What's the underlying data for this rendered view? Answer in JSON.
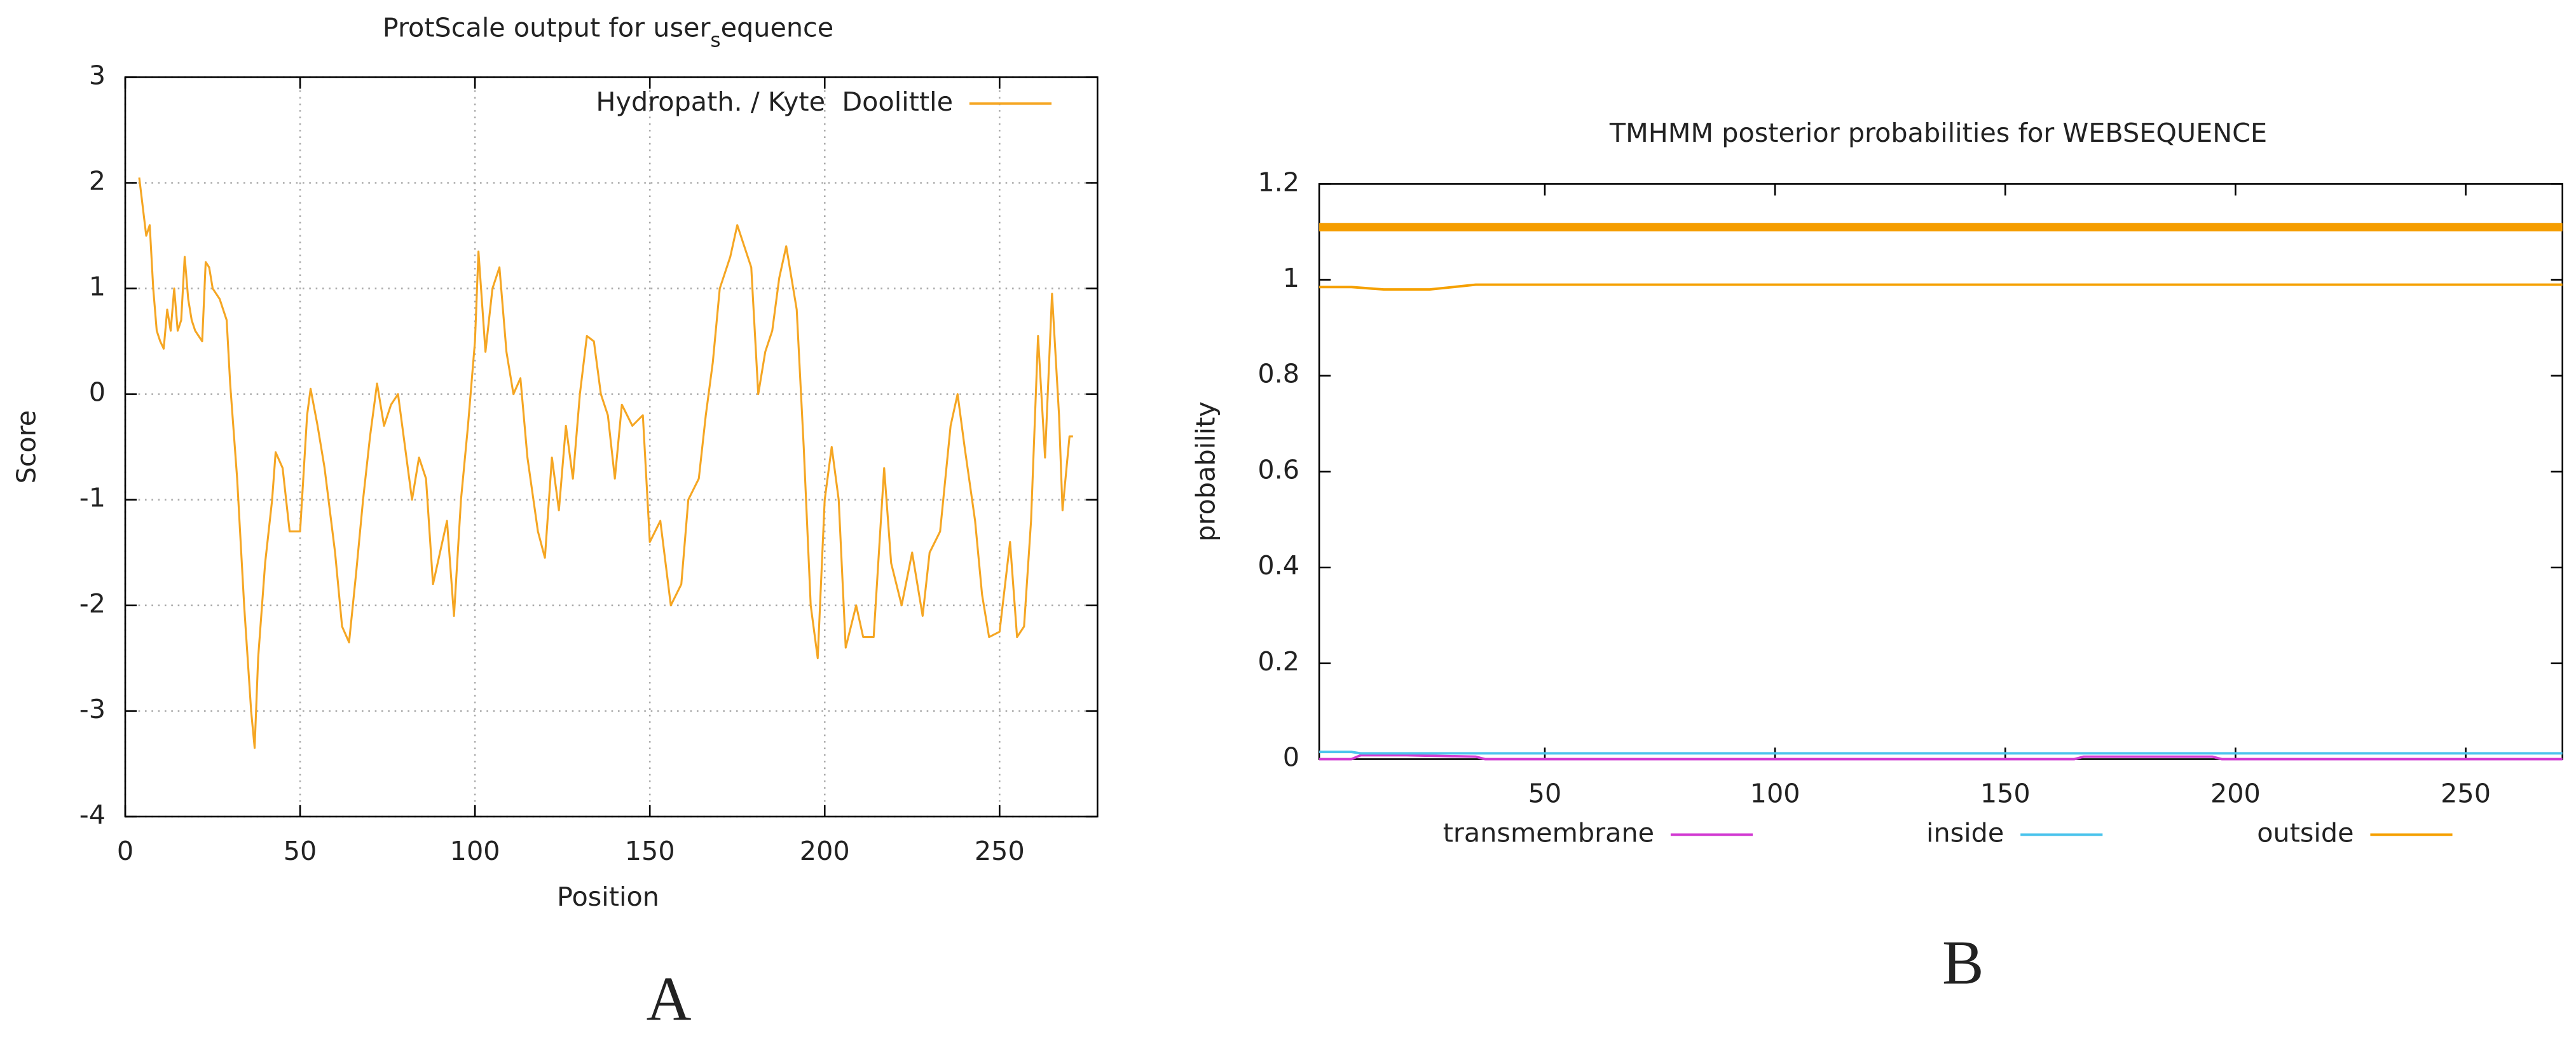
{
  "chart_data": [
    {
      "type": "line",
      "title": [
        "ProtScale output for user",
        "s",
        "equence"
      ],
      "xlabel": "Position",
      "ylabel": "Score",
      "panel_label": "A",
      "xlim": [
        0,
        278
      ],
      "ylim": [
        -4,
        3
      ],
      "xticks": [
        0,
        50,
        100,
        150,
        200,
        250
      ],
      "yticks": [
        -4,
        -3,
        -2,
        -1,
        0,
        1,
        2,
        3
      ],
      "grid": true,
      "legend": "upper right",
      "x": [
        4,
        6,
        7,
        8,
        9,
        10,
        11,
        12,
        13,
        14,
        15,
        16,
        17,
        18,
        19,
        20,
        22,
        23,
        24,
        25,
        27,
        28,
        29,
        30,
        32,
        34,
        36,
        37,
        38,
        40,
        42,
        43,
        45,
        47,
        50,
        52,
        53,
        55,
        57,
        60,
        62,
        64,
        66,
        68,
        70,
        72,
        74,
        76,
        78,
        80,
        82,
        84,
        86,
        88,
        90,
        92,
        94,
        96,
        98,
        100,
        101,
        103,
        105,
        107,
        109,
        111,
        113,
        115,
        118,
        120,
        122,
        124,
        126,
        128,
        130,
        132,
        134,
        136,
        138,
        140,
        142,
        145,
        148,
        150,
        153,
        156,
        159,
        161,
        164,
        166,
        168,
        170,
        173,
        175,
        179,
        181,
        183,
        185,
        187,
        189,
        192,
        194,
        196,
        198,
        200,
        202,
        204,
        206,
        209,
        211,
        214,
        217,
        219,
        222,
        225,
        228,
        230,
        233,
        236,
        238,
        240,
        243,
        245,
        247,
        250,
        253,
        255,
        257,
        259,
        261,
        263,
        265,
        267,
        268,
        270,
        271
      ],
      "series": [
        {
          "name": "Hydropath. / Kyte  Doolittle",
          "color": "#f5a623",
          "values": [
            2.05,
            1.5,
            1.6,
            1.0,
            0.6,
            0.5,
            0.43,
            0.8,
            0.6,
            1.0,
            0.6,
            0.7,
            1.3,
            0.9,
            0.7,
            0.6,
            0.5,
            1.25,
            1.2,
            1.0,
            0.9,
            0.8,
            0.7,
            0.1,
            -0.8,
            -2.0,
            -3.0,
            -3.35,
            -2.5,
            -1.6,
            -1.0,
            -0.55,
            -0.7,
            -1.3,
            -1.3,
            -0.2,
            0.05,
            -0.3,
            -0.7,
            -1.5,
            -2.2,
            -2.35,
            -1.7,
            -1.0,
            -0.4,
            0.1,
            -0.3,
            -0.1,
            0.0,
            -0.5,
            -1.0,
            -0.6,
            -0.8,
            -1.8,
            -1.5,
            -1.2,
            -2.1,
            -1.0,
            -0.3,
            0.5,
            1.35,
            0.4,
            1.0,
            1.2,
            0.4,
            0.0,
            0.15,
            -0.6,
            -1.3,
            -1.55,
            -0.6,
            -1.1,
            -0.3,
            -0.8,
            0.0,
            0.55,
            0.5,
            0.0,
            -0.2,
            -0.8,
            -0.1,
            -0.3,
            -0.2,
            -1.4,
            -1.2,
            -2.0,
            -1.8,
            -1.0,
            -0.8,
            -0.2,
            0.3,
            1.0,
            1.3,
            1.6,
            1.2,
            0.0,
            0.4,
            0.6,
            1.1,
            1.4,
            0.8,
            -0.5,
            -2.0,
            -2.5,
            -1.0,
            -0.5,
            -1.0,
            -2.4,
            -2.0,
            -2.3,
            -2.3,
            -0.7,
            -1.6,
            -2.0,
            -1.5,
            -2.1,
            -1.5,
            -1.3,
            -0.3,
            0.0,
            -0.5,
            -1.2,
            -1.9,
            -2.3,
            -2.25,
            -1.4,
            -2.3,
            -2.2,
            -1.2,
            0.55,
            -0.6,
            0.95,
            -0.2,
            -1.1,
            -0.4,
            -0.4
          ]
        }
      ]
    },
    {
      "type": "line",
      "title": "TMHMM posterior probabilities for WEBSEQUENCE",
      "ylabel": "probability",
      "panel_label": "B",
      "xlim": [
        1,
        271
      ],
      "ylim": [
        0,
        1.2
      ],
      "xticks": [
        50,
        100,
        150,
        200,
        250
      ],
      "yticks": [
        0,
        0.2,
        0.4,
        0.6,
        0.8,
        1,
        1.2
      ],
      "grid": false,
      "legend": "bottom",
      "predicted_outside": {
        "x": [
          1,
          271
        ],
        "values": [
          1.11,
          1.11
        ],
        "color": "#f59d00"
      },
      "series": [
        {
          "name": "transmembrane",
          "color": "#d23cd2",
          "x": [
            1,
            8,
            10,
            20,
            35,
            37,
            165,
            167,
            195,
            197,
            271
          ],
          "values": [
            0,
            0,
            0.008,
            0.008,
            0.005,
            0,
            0,
            0.005,
            0.005,
            0,
            0
          ]
        },
        {
          "name": "inside",
          "color": "#4cc4ec",
          "x": [
            1,
            8,
            10,
            40,
            271
          ],
          "values": [
            0.015,
            0.015,
            0.012,
            0.012,
            0.012
          ]
        },
        {
          "name": "outside",
          "color": "#f5a000",
          "x": [
            1,
            8,
            15,
            25,
            35,
            271
          ],
          "values": [
            0.985,
            0.985,
            0.98,
            0.98,
            0.99,
            0.99
          ]
        }
      ]
    }
  ]
}
